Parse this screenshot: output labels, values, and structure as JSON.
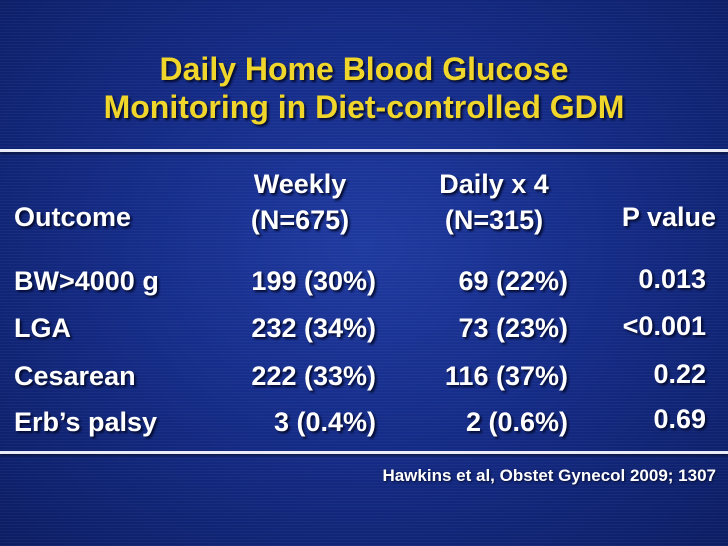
{
  "title": {
    "line1": "Daily Home Blood Glucose",
    "line2": "Monitoring in Diet-controlled GDM"
  },
  "colors": {
    "title": "#f0d62a",
    "text": "#ffffff",
    "background": "#152c88",
    "rule": "#e9ecf6"
  },
  "table": {
    "headers": {
      "outcome": "Outcome",
      "weekly": [
        "Weekly",
        "(N=675)"
      ],
      "daily": [
        "Daily x 4",
        "(N=315)"
      ],
      "pvalue": "P value"
    },
    "rows": [
      {
        "outcome": "BW>4000 g",
        "weekly": "199 (30%)",
        "daily": "69 (22%)",
        "p": "0.013"
      },
      {
        "outcome": "LGA",
        "weekly": "232 (34%)",
        "daily": "73 (23%)",
        "p": "<0.001"
      },
      {
        "outcome": "Cesarean",
        "weekly": "222 (33%)",
        "daily": "116 (37%)",
        "p": "0.22"
      },
      {
        "outcome": "Erb’s palsy",
        "weekly": "3 (0.4%)",
        "daily": "2 (0.6%)",
        "p": "0.69"
      }
    ]
  },
  "citation": "Hawkins et al, Obstet Gynecol 2009; 1307"
}
